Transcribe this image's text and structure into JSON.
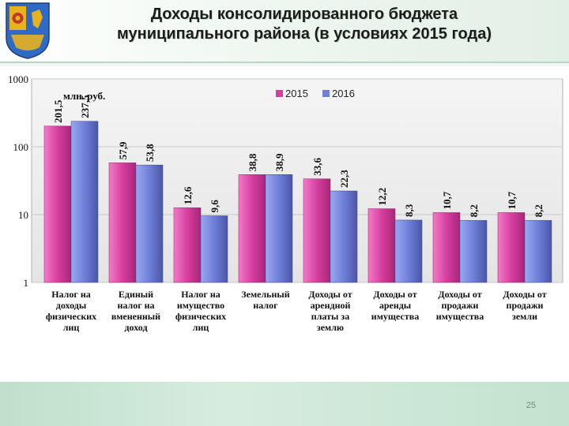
{
  "slide": {
    "title_line1": "Доходы консолидированного бюджета",
    "title_line2": "муниципального района (в условиях 2015 года)",
    "page_number": "25"
  },
  "colors": {
    "series_2015": "#d63fa0",
    "series_2016": "#6f7fd8",
    "footer": "#c3e2cf"
  },
  "chart_data": {
    "type": "bar",
    "scale": "log",
    "unit_label": "млн. руб.",
    "ylim": [
      1,
      1000
    ],
    "yticks": [
      "1",
      "10",
      "100",
      "1000"
    ],
    "categories": [
      "Налог на доходы физических лиц",
      "Единый налог на вмененный доход",
      "Налог на имущество физических лиц",
      "Земельный налог",
      "Доходы от арендной платы за землю",
      "Доходы от аренды имущества",
      "Доходы от продажи имущества",
      "Доходы от продажи земли"
    ],
    "category_lines": [
      [
        "Налог на",
        "доходы",
        "физических",
        "лиц"
      ],
      [
        "Единый",
        "налог на",
        "вмененный",
        "доход"
      ],
      [
        "Налог на",
        "имущество",
        "физических",
        "лиц"
      ],
      [
        "Земельный",
        "налог"
      ],
      [
        "Доходы от",
        "арендной",
        "платы за",
        "землю"
      ],
      [
        "Доходы от",
        "аренды",
        "имущества"
      ],
      [
        "Доходы от",
        "продажи",
        "имущества"
      ],
      [
        "Доходы от",
        "продажи",
        "земли"
      ]
    ],
    "series": [
      {
        "name": "2015",
        "values": [
          201.5,
          57.9,
          12.6,
          38.8,
          33.6,
          12.2,
          10.7,
          10.7
        ],
        "labels": [
          "201,5",
          "57,9",
          "12,6",
          "38,8",
          "33,6",
          "12,2",
          "10,7",
          "10,7"
        ]
      },
      {
        "name": "2016",
        "values": [
          237.5,
          53.8,
          9.6,
          38.9,
          22.3,
          8.3,
          8.2,
          8.2
        ],
        "labels": [
          "237,5",
          "53,8",
          "9,6",
          "38,9",
          "22,3",
          "8,3",
          "8,2",
          "8,2"
        ]
      }
    ],
    "legend_position": "top-center"
  }
}
